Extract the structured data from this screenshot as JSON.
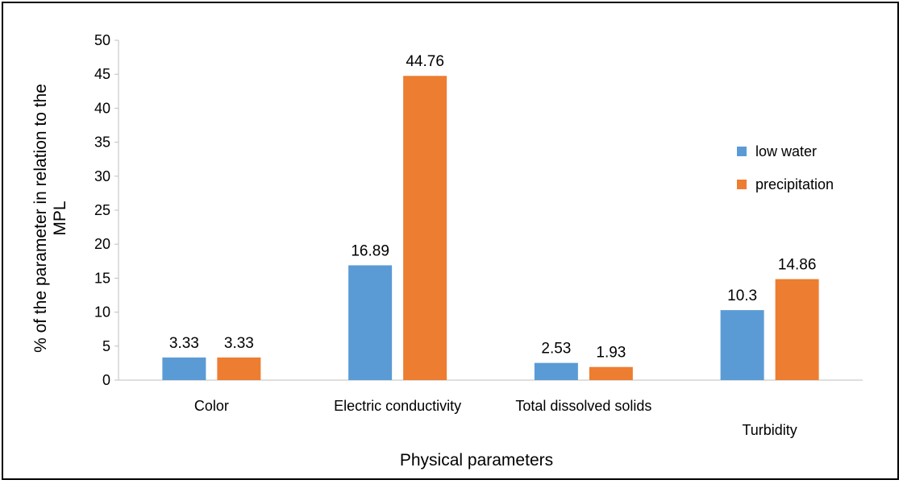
{
  "chart_data": {
    "type": "bar",
    "categories": [
      "Color",
      "Electric conductivity",
      "Total dissolved solids",
      "Turbidity"
    ],
    "series": [
      {
        "name": "low water",
        "values": [
          3.33,
          16.89,
          2.53,
          10.3
        ],
        "labels": [
          "3.33",
          "16.89",
          "2.53",
          "10.3"
        ],
        "color": "#5B9BD5"
      },
      {
        "name": "precipitation",
        "values": [
          3.33,
          44.76,
          1.93,
          14.86
        ],
        "labels": [
          "3.33",
          "44.76",
          "1.93",
          "14.86"
        ],
        "color": "#ED7D31"
      }
    ],
    "xlabel": "Physical parameters",
    "ylabel_lines": [
      "% of the parameter in relation to the",
      "MPL"
    ],
    "ylim": [
      0,
      50
    ],
    "yticks": [
      0,
      5,
      10,
      15,
      20,
      25,
      30,
      35,
      40,
      45,
      50
    ],
    "grid": false,
    "legend_position": "right"
  }
}
